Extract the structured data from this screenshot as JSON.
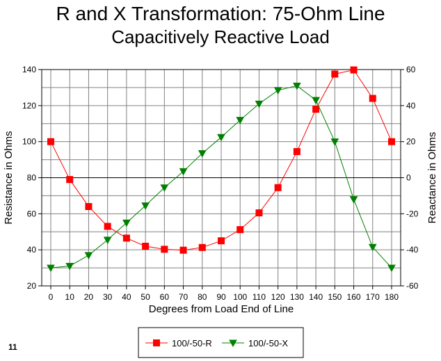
{
  "page_number": "11",
  "chart_data": {
    "type": "line",
    "title": "R and X Transformation: 75-Ohm Line",
    "subtitle": "Capacitively Reactive Load",
    "xlabel": "Degrees from Load End of Line",
    "ylabel_left": "Resistance in Ohms",
    "ylabel_right": "Reactance in Ohms",
    "x": [
      0,
      10,
      20,
      30,
      40,
      50,
      60,
      70,
      80,
      90,
      100,
      110,
      120,
      130,
      140,
      150,
      160,
      170,
      180
    ],
    "x_ticks": [
      "0",
      "10",
      "20",
      "30",
      "40",
      "50",
      "60",
      "70",
      "80",
      "90",
      "100",
      "110",
      "120",
      "130",
      "140",
      "150",
      "160",
      "170",
      "180"
    ],
    "ylim_left": [
      20,
      140
    ],
    "yticks_left": [
      "20",
      "40",
      "60",
      "80",
      "100",
      "120",
      "140"
    ],
    "ylim_right": [
      -60,
      60
    ],
    "yticks_right": [
      "-60",
      "-40",
      "-20",
      "0",
      "20",
      "40",
      "60"
    ],
    "grid": true,
    "legend_position": "bottom",
    "series": [
      {
        "name": "100/-50-R",
        "axis": "left",
        "color": "#ff0000",
        "marker": "square",
        "values": [
          100,
          79,
          64,
          53,
          46.5,
          42,
          40.3,
          39.8,
          41.3,
          45,
          51.2,
          60.5,
          74.5,
          94.5,
          118,
          137.5,
          139.8,
          124,
          100
        ]
      },
      {
        "name": "100/-50-X",
        "axis": "right",
        "color": "#008000",
        "marker": "triangle-down",
        "values": [
          -50,
          -49,
          -43,
          -34.5,
          -25,
          -15.5,
          -5.5,
          3.5,
          13.5,
          22.5,
          32,
          41,
          48.5,
          51,
          43,
          20,
          -12,
          -38.5,
          -50
        ]
      }
    ]
  }
}
